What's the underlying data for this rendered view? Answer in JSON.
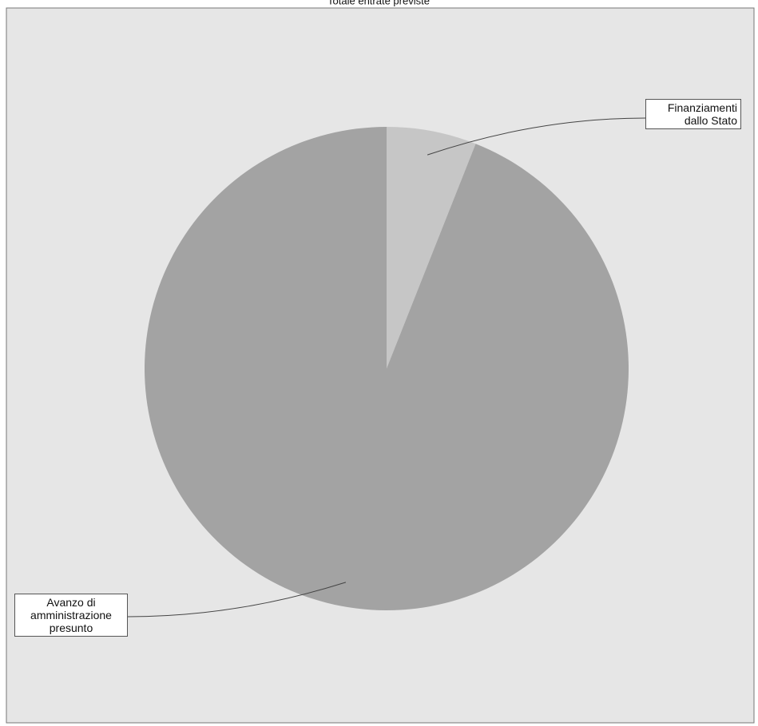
{
  "chart_data": {
    "type": "pie",
    "title": "Totale entrate previste",
    "categories": [
      "Finanziamenti dallo Stato",
      "Avanzo di amministrazione presunto"
    ],
    "values": [
      6,
      94
    ],
    "colors": [
      "#c6c6c6",
      "#a3a3a3"
    ]
  }
}
